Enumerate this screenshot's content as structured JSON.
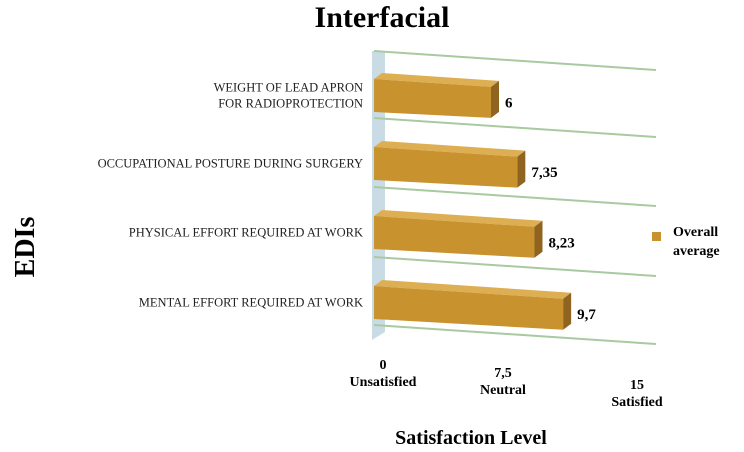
{
  "chart_data": {
    "type": "bar",
    "orientation": "horizontal",
    "title": "Interfacial",
    "ylabel": "EDIs",
    "xlabel": "Satisfaction Level",
    "categories": [
      "WEIGHT OF LEAD APRON FOR RADIOPROTECTION",
      "OCCUPATIONAL POSTURE DURING SURGERY",
      "PHYSICAL EFFORT REQUIRED AT WORK",
      "MENTAL EFFORT REQUIRED AT WORK"
    ],
    "category_lines": [
      [
        "WEIGHT OF LEAD APRON",
        "FOR RADIOPROTECTION"
      ],
      [
        "OCCUPATIONAL POSTURE DURING SURGERY"
      ],
      [
        "PHYSICAL EFFORT REQUIRED AT WORK"
      ],
      [
        "MENTAL EFFORT REQUIRED AT WORK"
      ]
    ],
    "series": [
      {
        "name": "Overall average",
        "values": [
          6,
          7.35,
          8.23,
          9.7
        ],
        "labels": [
          "6",
          "7,35",
          "8,23",
          "9,7"
        ],
        "color": "#C8922E"
      }
    ],
    "xlim": [
      0,
      15
    ],
    "xticks": [
      {
        "value": 0,
        "lines": [
          "0",
          "Unsatisfied"
        ]
      },
      {
        "value": 7.5,
        "lines": [
          "7,5",
          "Neutral"
        ]
      },
      {
        "value": 15,
        "lines": [
          "15",
          "Satisfied"
        ]
      }
    ],
    "legend": {
      "position": "right",
      "lines": [
        "Overall",
        "average"
      ]
    },
    "grid": true,
    "style": "3d",
    "colors": {
      "bar_front": "#C8922E",
      "bar_top": "#DDAE52",
      "bar_side": "#8E6420",
      "wall": "#C9DCE6",
      "grid": "#A9C9A0"
    }
  }
}
